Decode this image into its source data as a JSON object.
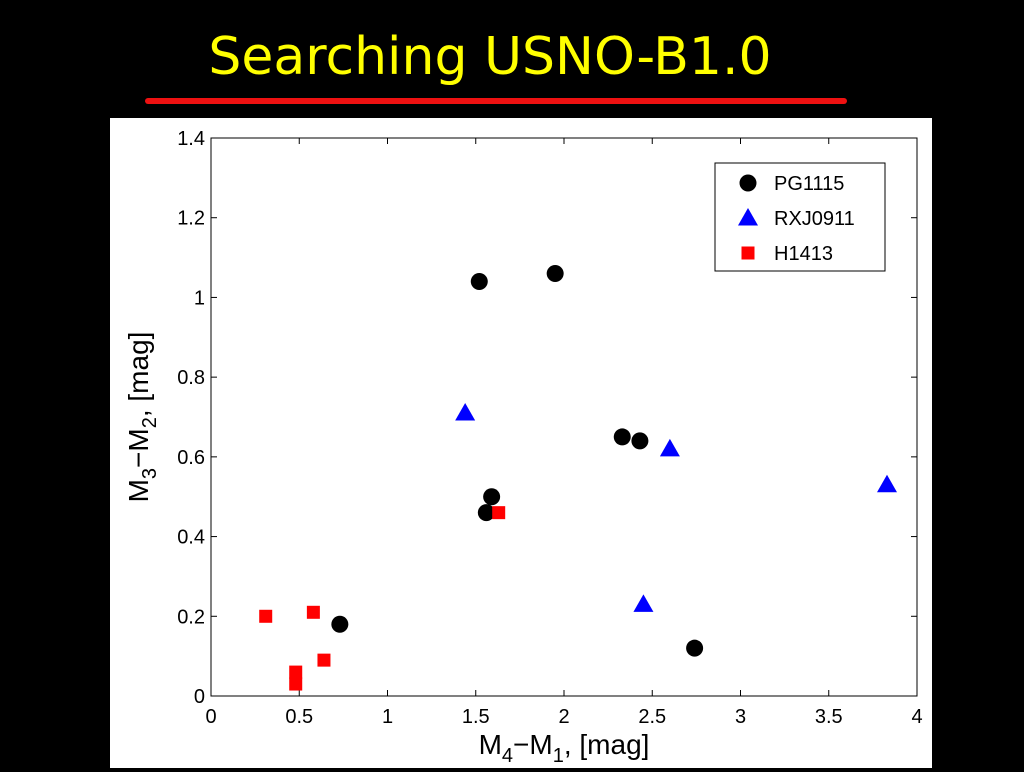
{
  "slide": {
    "title": "Searching USNO-B1.0"
  },
  "colors": {
    "title": "#ffff00",
    "rule": "#ee1111",
    "background": "#000000",
    "plot_background": "#ffffff"
  },
  "chart_data": {
    "type": "scatter",
    "title": "",
    "xlabel": "M4−M1, [mag]",
    "ylabel": "M3−M2, [mag]",
    "xlabel_parts": {
      "base1": "M",
      "sub1": "4",
      "mid": "−M",
      "sub2": "1",
      "tail": ", [mag]"
    },
    "ylabel_parts": {
      "base1": "M",
      "sub1": "3",
      "mid": "−M",
      "sub2": "2",
      "tail": ", [mag]"
    },
    "xlim": [
      0,
      4
    ],
    "ylim": [
      0,
      1.4
    ],
    "xticks": [
      "0",
      "0.5",
      "1",
      "1.5",
      "2",
      "2.5",
      "3",
      "3.5",
      "4"
    ],
    "yticks": [
      "0",
      "0.2",
      "0.4",
      "0.6",
      "0.8",
      "1",
      "1.2",
      "1.4"
    ],
    "grid": false,
    "legend_position": "top-right",
    "series": [
      {
        "name": "PG1115",
        "marker": "circle",
        "color": "#000000",
        "points": [
          {
            "x": 1.52,
            "y": 1.04
          },
          {
            "x": 1.95,
            "y": 1.06
          },
          {
            "x": 2.33,
            "y": 0.65
          },
          {
            "x": 2.43,
            "y": 0.64
          },
          {
            "x": 1.59,
            "y": 0.5
          },
          {
            "x": 1.56,
            "y": 0.46
          },
          {
            "x": 0.73,
            "y": 0.18
          },
          {
            "x": 2.74,
            "y": 0.12
          }
        ]
      },
      {
        "name": "RXJ0911",
        "marker": "triangle",
        "color": "#0000ff",
        "points": [
          {
            "x": 1.44,
            "y": 0.71
          },
          {
            "x": 2.6,
            "y": 0.62
          },
          {
            "x": 3.83,
            "y": 0.53
          },
          {
            "x": 2.45,
            "y": 0.23
          }
        ]
      },
      {
        "name": "H1413",
        "marker": "square",
        "color": "#ff0000",
        "points": [
          {
            "x": 1.63,
            "y": 0.46
          },
          {
            "x": 0.31,
            "y": 0.2
          },
          {
            "x": 0.58,
            "y": 0.21
          },
          {
            "x": 0.64,
            "y": 0.09
          },
          {
            "x": 0.48,
            "y": 0.06
          },
          {
            "x": 0.48,
            "y": 0.03
          }
        ]
      }
    ]
  }
}
